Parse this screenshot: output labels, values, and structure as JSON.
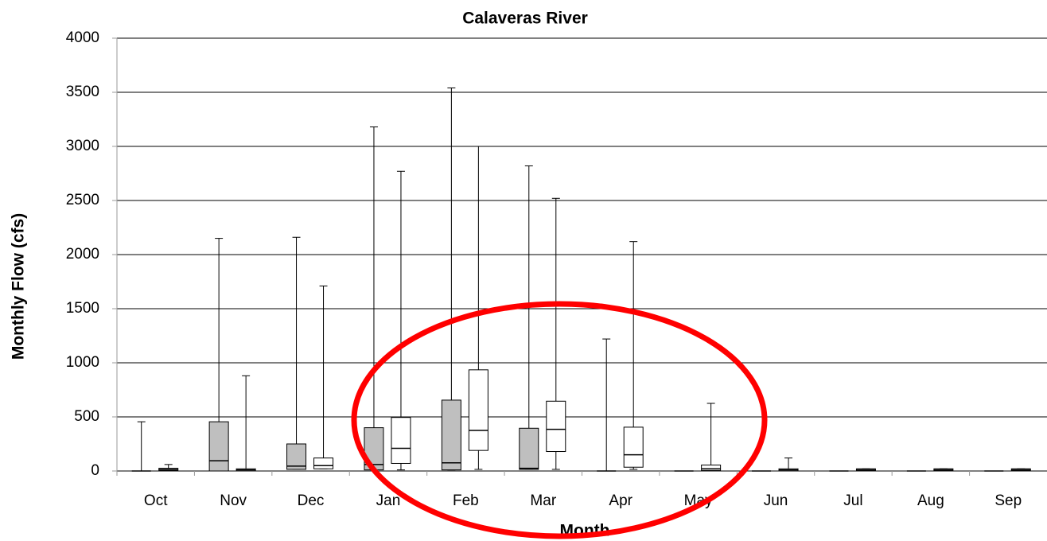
{
  "chart_data": {
    "type": "box",
    "title": "Calaveras River",
    "x_label": "Month",
    "y_label": "Monthly Flow (cfs)",
    "categories": [
      "Oct",
      "Nov",
      "Dec",
      "Jan",
      "Feb",
      "Mar",
      "Apr",
      "May",
      "Jun",
      "Jul",
      "Aug",
      "Sep"
    ],
    "ylim": [
      0,
      4000
    ],
    "yticks": [
      0,
      500,
      1000,
      1500,
      2000,
      2500,
      3000,
      3500,
      4000
    ],
    "grid": true,
    "series": [
      {
        "color": "#bfbfbf",
        "min": [
          0,
          0,
          15,
          10,
          10,
          15,
          0,
          0,
          0,
          0,
          0,
          0
        ],
        "q1": [
          0,
          0,
          15,
          10,
          10,
          15,
          0,
          0,
          0,
          0,
          0,
          0
        ],
        "median": [
          0,
          95,
          45,
          60,
          75,
          25,
          0,
          0,
          0,
          0,
          0,
          0
        ],
        "q3": [
          0,
          455,
          250,
          400,
          655,
          395,
          0,
          0,
          0,
          0,
          0,
          0
        ],
        "max": [
          455,
          2150,
          2160,
          3180,
          3540,
          2820,
          1220,
          0,
          0,
          0,
          0,
          0
        ]
      },
      {
        "color": "#ffffff",
        "min": [
          0,
          0,
          20,
          10,
          15,
          15,
          15,
          5,
          0,
          0,
          0,
          0
        ],
        "q1": [
          5,
          0,
          20,
          70,
          190,
          180,
          35,
          5,
          0,
          5,
          5,
          5
        ],
        "median": [
          15,
          10,
          50,
          210,
          375,
          385,
          150,
          20,
          10,
          15,
          15,
          15
        ],
        "q3": [
          25,
          20,
          120,
          495,
          935,
          645,
          405,
          55,
          20,
          20,
          20,
          20
        ],
        "max": [
          60,
          880,
          1710,
          2770,
          3000,
          2520,
          2120,
          625,
          120,
          20,
          20,
          20
        ]
      }
    ]
  }
}
